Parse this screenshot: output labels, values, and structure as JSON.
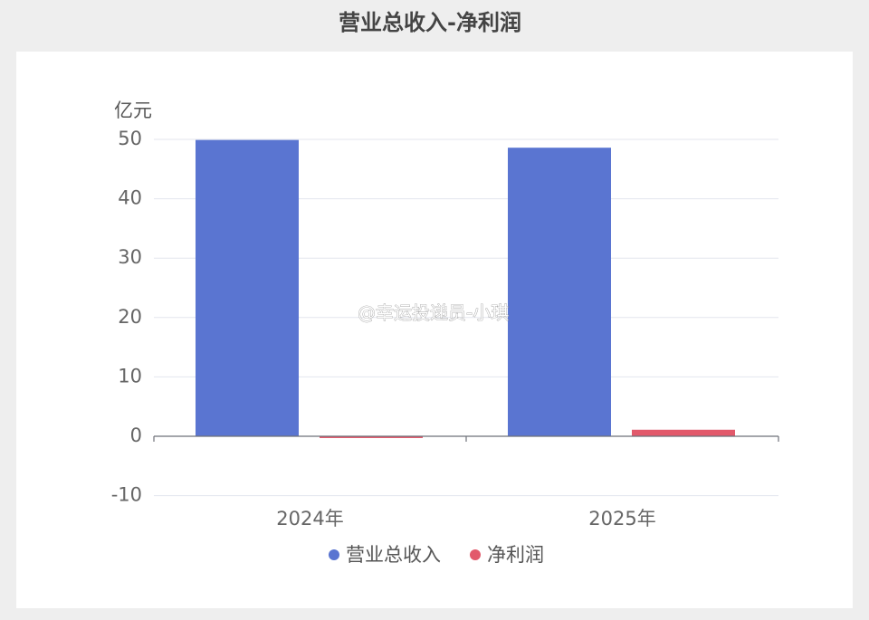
{
  "chart_data": {
    "type": "bar",
    "title": "营业总收入-净利润",
    "y_unit": "亿元",
    "categories": [
      "2024年",
      "2025年"
    ],
    "series": [
      {
        "name": "营业总收入",
        "color": "#5a75d1",
        "values": [
          49.9,
          48.6
        ]
      },
      {
        "name": "净利润",
        "color": "#e2596b",
        "values": [
          -0.3,
          1.1
        ]
      }
    ],
    "ylim": [
      -10,
      50
    ],
    "yticks": [
      -10,
      0,
      10,
      20,
      30,
      40,
      50
    ],
    "grid": true,
    "legend": "bottom",
    "watermark": "@幸运投递员-小琪"
  }
}
